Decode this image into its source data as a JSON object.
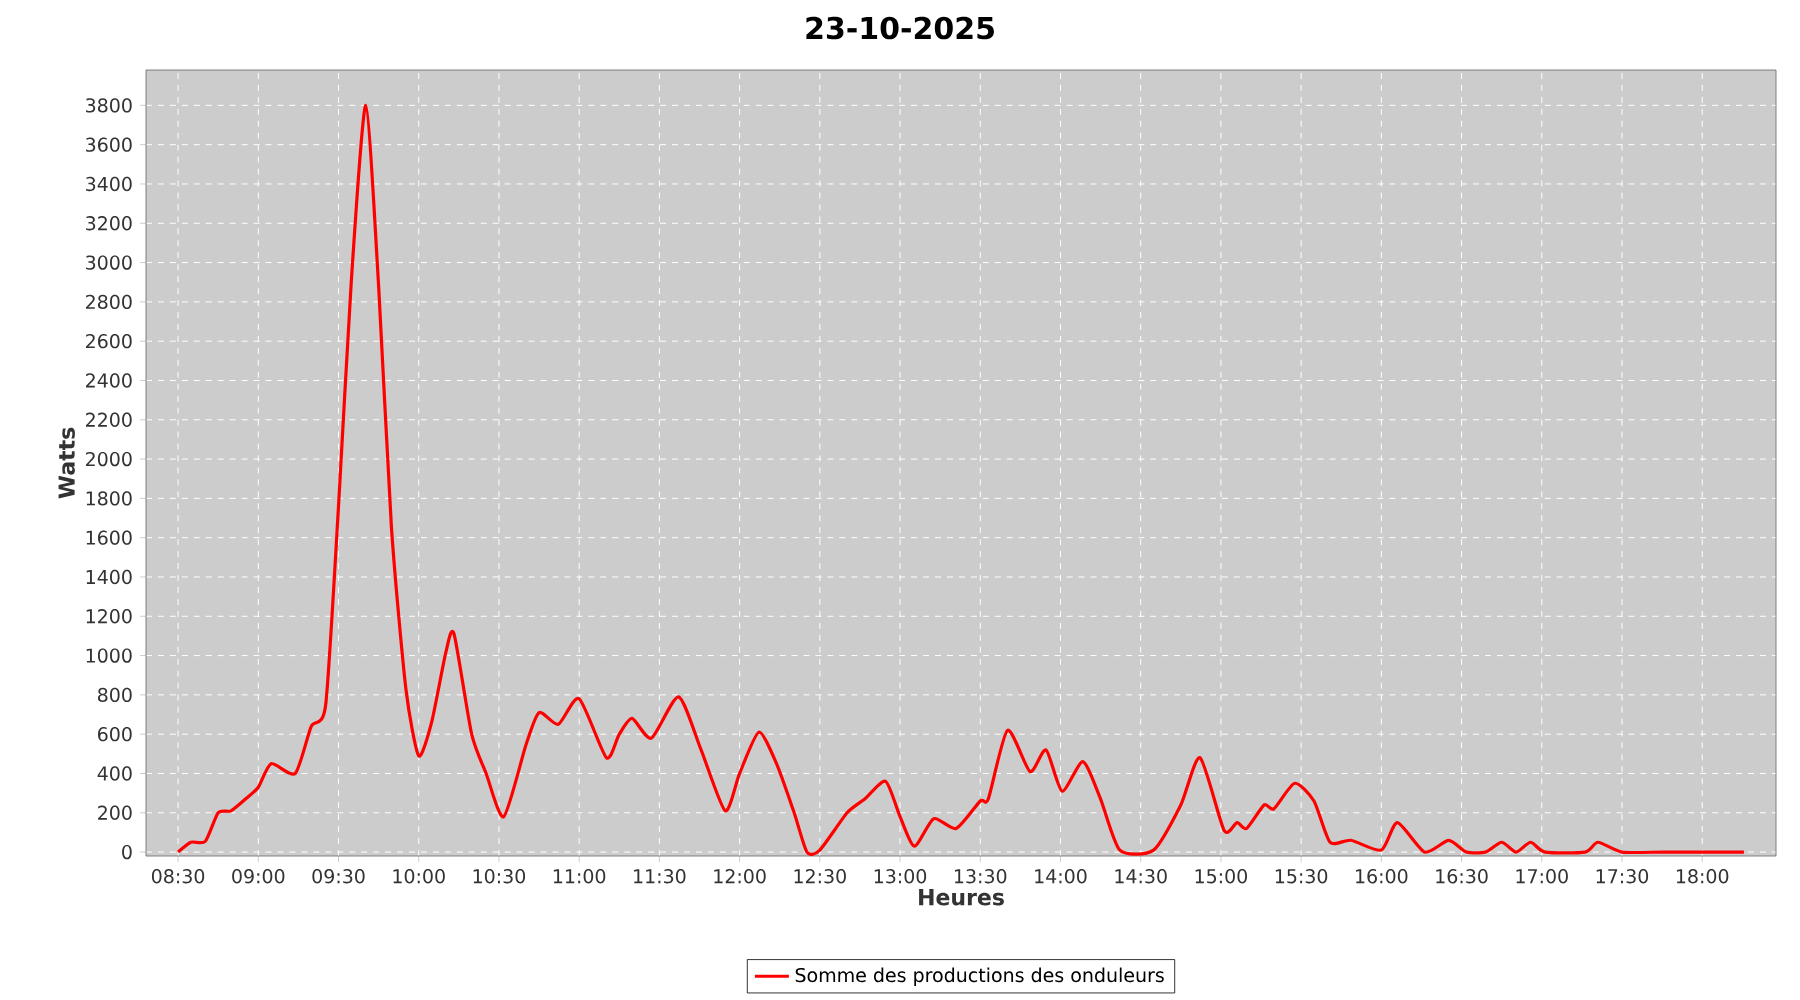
{
  "chart_data": {
    "type": "line",
    "title": "23-10-2025",
    "xlabel": "Heures",
    "ylabel": "Watts",
    "x": [
      8.5,
      8.58,
      8.67,
      8.75,
      8.83,
      8.92,
      9.0,
      9.08,
      9.23,
      9.33,
      9.42,
      9.5,
      9.58,
      9.67,
      9.75,
      9.83,
      9.92,
      10.0,
      10.08,
      10.17,
      10.22,
      10.33,
      10.42,
      10.53,
      10.67,
      10.75,
      10.87,
      11.0,
      11.17,
      11.25,
      11.33,
      11.45,
      11.62,
      11.76,
      11.91,
      12.0,
      12.12,
      12.23,
      12.34,
      12.42,
      12.5,
      12.67,
      12.78,
      12.91,
      13.0,
      13.09,
      13.21,
      13.35,
      13.5,
      13.55,
      13.67,
      13.81,
      13.91,
      14.01,
      14.14,
      14.25,
      14.37,
      14.58,
      14.75,
      14.87,
      15.02,
      15.1,
      15.16,
      15.27,
      15.33,
      15.46,
      15.58,
      15.68,
      15.81,
      16.0,
      16.1,
      16.27,
      16.42,
      16.53,
      16.65,
      16.75,
      16.84,
      16.93,
      17.02,
      17.27,
      17.35,
      17.5,
      17.75,
      18.0,
      18.26
    ],
    "series": [
      {
        "name": "Somme des productions des onduleurs",
        "color": "#ff0000",
        "values": [
          0,
          50,
          55,
          200,
          210,
          270,
          330,
          450,
          400,
          640,
          750,
          1760,
          2910,
          3800,
          2880,
          1650,
          830,
          490,
          660,
          1020,
          1110,
          600,
          400,
          180,
          550,
          710,
          650,
          780,
          480,
          600,
          680,
          580,
          790,
          520,
          210,
          400,
          610,
          450,
          200,
          0,
          10,
          200,
          270,
          360,
          180,
          30,
          170,
          120,
          260,
          270,
          620,
          410,
          520,
          310,
          460,
          270,
          10,
          10,
          240,
          480,
          110,
          150,
          120,
          240,
          220,
          350,
          260,
          50,
          60,
          10,
          150,
          0,
          60,
          0,
          0,
          50,
          0,
          50,
          0,
          0,
          50,
          0,
          0,
          0,
          0
        ]
      }
    ],
    "xlim": [
      8.3,
      18.46
    ],
    "ylim": [
      -20,
      3980
    ],
    "xticks": [
      {
        "value": 8.5,
        "label": "08:30"
      },
      {
        "value": 9.0,
        "label": "09:00"
      },
      {
        "value": 9.5,
        "label": "09:30"
      },
      {
        "value": 10.0,
        "label": "10:00"
      },
      {
        "value": 10.5,
        "label": "10:30"
      },
      {
        "value": 11.0,
        "label": "11:00"
      },
      {
        "value": 11.5,
        "label": "11:30"
      },
      {
        "value": 12.0,
        "label": "12:00"
      },
      {
        "value": 12.5,
        "label": "12:30"
      },
      {
        "value": 13.0,
        "label": "13:00"
      },
      {
        "value": 13.5,
        "label": "13:30"
      },
      {
        "value": 14.0,
        "label": "14:00"
      },
      {
        "value": 14.5,
        "label": "14:30"
      },
      {
        "value": 15.0,
        "label": "15:00"
      },
      {
        "value": 15.5,
        "label": "15:30"
      },
      {
        "value": 16.0,
        "label": "16:00"
      },
      {
        "value": 16.5,
        "label": "16:30"
      },
      {
        "value": 17.0,
        "label": "17:00"
      },
      {
        "value": 17.5,
        "label": "17:30"
      },
      {
        "value": 18.0,
        "label": "18:00"
      }
    ],
    "yticks": [
      0,
      200,
      400,
      600,
      800,
      1000,
      1200,
      1400,
      1600,
      1800,
      2000,
      2200,
      2400,
      2600,
      2800,
      3000,
      3200,
      3400,
      3600,
      3800
    ],
    "grid": true,
    "legend": "bottom",
    "line_style": "solid",
    "marker": "none"
  }
}
